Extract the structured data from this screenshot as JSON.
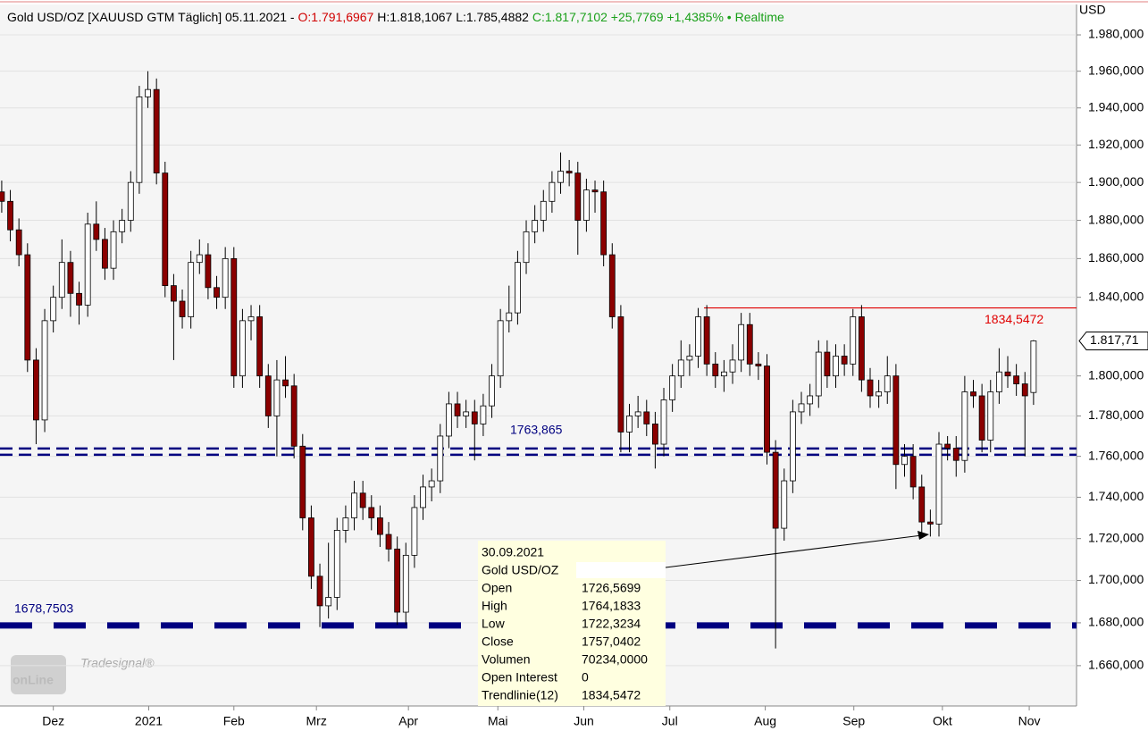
{
  "chart_data": {
    "type": "candlestick",
    "header": [
      {
        "text": "Gold USD/OZ [XAUUSD GTM Täglich] 05.11.2021 - ",
        "color": "#000000"
      },
      {
        "text": "O:1.791,6967",
        "color": "#d00000"
      },
      {
        "text": " H:1.818,1067 L:1.785,4882 ",
        "color": "#000000"
      },
      {
        "text": "C:1.817,7102 +25,7769 +1,4385%",
        "color": "#1aa01a"
      },
      {
        "text": " • Realtime",
        "color": "#1aa01a"
      }
    ],
    "y_label": "USD",
    "log": true,
    "grid": true,
    "up_color": "#ffffff",
    "down_color": "#8b0000",
    "ylim": [
      1641.4,
      1996.9
    ],
    "yticks": [
      {
        "value": 1660,
        "label": "1.660,000"
      },
      {
        "value": 1680,
        "label": "1.680,000"
      },
      {
        "value": 1700,
        "label": "1.700,000"
      },
      {
        "value": 1720,
        "label": "1.720,000"
      },
      {
        "value": 1740,
        "label": "1.740,000"
      },
      {
        "value": 1760,
        "label": "1.760,000"
      },
      {
        "value": 1780,
        "label": "1.780,000"
      },
      {
        "value": 1800,
        "label": "1.800,000"
      },
      {
        "value": 1840,
        "label": "1.840,000"
      },
      {
        "value": 1860,
        "label": "1.860,000"
      },
      {
        "value": 1880,
        "label": "1.880,000"
      },
      {
        "value": 1900,
        "label": "1.900,000"
      },
      {
        "value": 1920,
        "label": "1.920,000"
      },
      {
        "value": 1940,
        "label": "1.940,000"
      },
      {
        "value": 1960,
        "label": "1.960,000"
      },
      {
        "value": 1980,
        "label": "1.980,000"
      }
    ],
    "xlim": [
      -0.2,
      125
    ],
    "xticks": [
      {
        "value": 6,
        "label": "Dez"
      },
      {
        "value": 17.1,
        "label": "2021"
      },
      {
        "value": 27,
        "label": "Feb"
      },
      {
        "value": 36.6,
        "label": "Mrz"
      },
      {
        "value": 47.3,
        "label": "Apr"
      },
      {
        "value": 57.7,
        "label": "Mai"
      },
      {
        "value": 67.7,
        "label": "Jun"
      },
      {
        "value": 77.7,
        "label": "Jul"
      },
      {
        "value": 88.8,
        "label": "Aug"
      },
      {
        "value": 99.1,
        "label": "Sep"
      },
      {
        "value": 109.4,
        "label": "Okt"
      },
      {
        "value": 119.5,
        "label": "Nov"
      }
    ],
    "open": [
      1895,
      1890,
      1875,
      1862,
      1808,
      1778,
      1828,
      1840,
      1858,
      1842,
      1836,
      1878,
      1870,
      1855,
      1874,
      1880,
      1900,
      1946,
      1950,
      1905,
      1846,
      1838,
      1830,
      1858,
      1862,
      1845,
      1840,
      1860,
      1800,
      1828,
      1830,
      1800,
      1780,
      1798,
      1795,
      1765,
      1730,
      1702,
      1688,
      1692,
      1724,
      1730,
      1742,
      1735,
      1730,
      1722,
      1715,
      1685,
      1712,
      1735,
      1745,
      1748,
      1770,
      1786,
      1780,
      1782,
      1776,
      1785,
      1800,
      1828,
      1832,
      1858,
      1874,
      1880,
      1890,
      1900,
      1906,
      1905,
      1880,
      1896,
      1895,
      1862,
      1830,
      1772,
      1780,
      1782,
      1776,
      1766,
      1788,
      1800,
      1808,
      1810,
      1830,
      1806,
      1800,
      1802,
      1808,
      1826,
      1806,
      1805,
      1762,
      1725,
      1748,
      1782,
      1786,
      1790,
      1812,
      1800,
      1810,
      1806,
      1830,
      1798,
      1790,
      1792,
      1800,
      1756,
      1760,
      1745,
      1728,
      1727,
      1766,
      1764,
      1758,
      1792,
      1790,
      1768,
      1792,
      1802,
      1800,
      1796,
      1791.6967
    ],
    "high": [
      1901,
      1896,
      1881,
      1868,
      1814,
      1834,
      1846,
      1870,
      1864,
      1848,
      1884,
      1890,
      1876,
      1880,
      1886,
      1906,
      1952,
      1960,
      1956,
      1911,
      1852,
      1844,
      1864,
      1870,
      1868,
      1851,
      1866,
      1866,
      1834,
      1836,
      1836,
      1806,
      1808,
      1810,
      1801,
      1771,
      1736,
      1708,
      1718,
      1730,
      1736,
      1748,
      1748,
      1741,
      1736,
      1728,
      1721,
      1718,
      1741,
      1751,
      1754,
      1776,
      1792,
      1792,
      1788,
      1788,
      1791,
      1806,
      1834,
      1846,
      1864,
      1880,
      1888,
      1896,
      1906,
      1916,
      1912,
      1911,
      1902,
      1901,
      1901,
      1868,
      1836,
      1786,
      1790,
      1788,
      1782,
      1794,
      1806,
      1818,
      1816,
      1834.5,
      1836,
      1812,
      1808,
      1816,
      1832,
      1832,
      1812,
      1811,
      1768,
      1754,
      1788,
      1792,
      1796,
      1818,
      1818,
      1816,
      1816,
      1834,
      1836,
      1804,
      1798,
      1810,
      1806,
      1766,
      1766,
      1751,
      1734,
      1772,
      1770,
      1770,
      1800,
      1798,
      1796,
      1798,
      1814,
      1810,
      1806,
      1802,
      1818.1067
    ],
    "low": [
      1884,
      1869,
      1856,
      1802,
      1766,
      1772,
      1822,
      1834,
      1830,
      1826,
      1830,
      1864,
      1849,
      1849,
      1868,
      1874,
      1894,
      1940,
      1899,
      1840,
      1808,
      1824,
      1824,
      1852,
      1839,
      1834,
      1834,
      1794,
      1794,
      1818,
      1794,
      1774,
      1760,
      1789,
      1759,
      1724,
      1696,
      1678,
      1682,
      1686,
      1718,
      1724,
      1729,
      1724,
      1716,
      1709,
      1679,
      1679,
      1706,
      1729,
      1738,
      1742,
      1764,
      1774,
      1774,
      1758,
      1770,
      1779,
      1794,
      1822,
      1826,
      1852,
      1868,
      1874,
      1884,
      1894,
      1898,
      1862,
      1874,
      1884,
      1856,
      1824,
      1762,
      1762,
      1774,
      1770,
      1754,
      1760,
      1782,
      1794,
      1800,
      1804,
      1800,
      1794,
      1792,
      1796,
      1802,
      1800,
      1798,
      1756,
      1668,
      1719,
      1742,
      1776,
      1780,
      1784,
      1794,
      1794,
      1800,
      1800,
      1792,
      1784,
      1784,
      1786,
      1744,
      1750,
      1739,
      1722,
      1721,
      1721,
      1758,
      1750,
      1752,
      1784,
      1762,
      1762,
      1786,
      1794,
      1790,
      1760,
      1785.4882
    ],
    "close": [
      1890,
      1875,
      1862,
      1808,
      1778,
      1828,
      1840,
      1858,
      1842,
      1836,
      1878,
      1870,
      1855,
      1874,
      1880,
      1900,
      1946,
      1950,
      1905,
      1846,
      1838,
      1830,
      1858,
      1862,
      1845,
      1840,
      1860,
      1800,
      1828,
      1830,
      1800,
      1780,
      1798,
      1795,
      1765,
      1730,
      1702,
      1688,
      1692,
      1724,
      1730,
      1742,
      1735,
      1730,
      1722,
      1715,
      1685,
      1712,
      1735,
      1745,
      1748,
      1770,
      1786,
      1780,
      1782,
      1776,
      1785,
      1800,
      1828,
      1832,
      1858,
      1874,
      1880,
      1890,
      1900,
      1906,
      1905,
      1880,
      1896,
      1895,
      1862,
      1830,
      1772,
      1780,
      1782,
      1776,
      1766,
      1788,
      1800,
      1808,
      1810,
      1830,
      1806,
      1800,
      1802,
      1808,
      1826,
      1806,
      1805,
      1762,
      1725,
      1748,
      1782,
      1786,
      1790,
      1812,
      1800,
      1810,
      1806,
      1830,
      1798,
      1790,
      1792,
      1800,
      1756,
      1760,
      1745,
      1728,
      1727,
      1766,
      1764,
      1758,
      1792,
      1790,
      1768,
      1792,
      1802,
      1800,
      1796,
      1790,
      1817.7102
    ],
    "levels": [
      {
        "value": 1763.865,
        "label": "1763,865",
        "color": "#000080",
        "style": "double"
      },
      {
        "value": 1678.7503,
        "label": "1678,7503",
        "color": "#000080",
        "style": "thick"
      },
      {
        "value": 1834.5472,
        "label": "1834,5472",
        "color": "#e00000",
        "style": "trend"
      }
    ],
    "last_price": {
      "value": 1817.7102,
      "label": "1.817,71"
    },
    "tooltip": {
      "date": "30.09.2021",
      "name": "Gold USD/OZ",
      "rows": [
        [
          "Open",
          "1726,5699"
        ],
        [
          "High",
          "1764,1833"
        ],
        [
          "Low",
          "1722,3234"
        ],
        [
          "Close",
          "1757,0402"
        ],
        [
          "Volumen",
          "70234,0000"
        ],
        [
          "Open Interest",
          "0"
        ],
        [
          "Trendlinie(12)",
          "1834,5472"
        ]
      ]
    },
    "logo": [
      "Tradesignal®",
      "onLine"
    ]
  }
}
